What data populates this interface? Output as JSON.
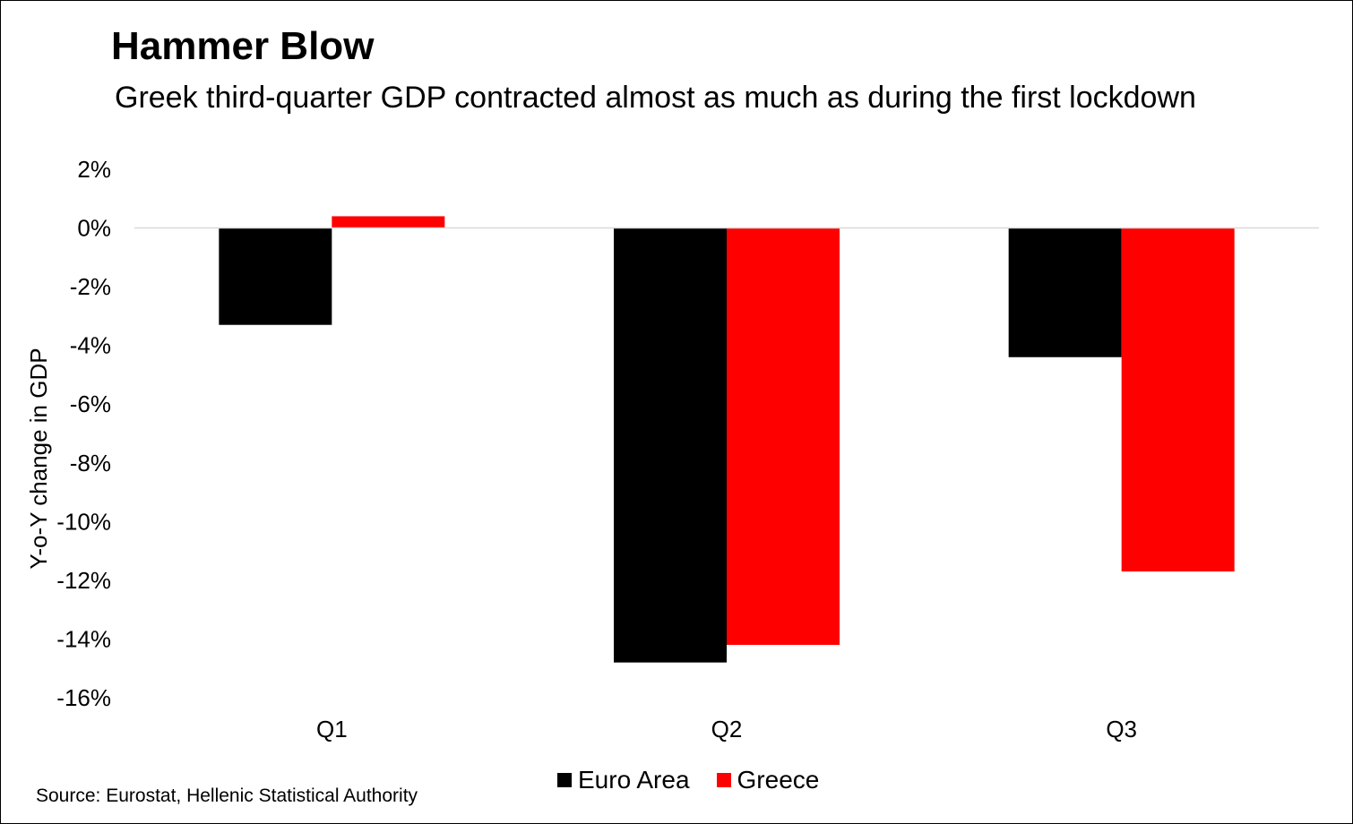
{
  "chart_data": {
    "type": "bar",
    "title": "Hammer Blow",
    "subtitle": "Greek third-quarter GDP contracted almost as much as during the first lockdown",
    "ylabel": "Y-o-Y change in GDP",
    "xlabel": "",
    "categories": [
      "Q1",
      "Q2",
      "Q3"
    ],
    "series": [
      {
        "name": "Euro Area",
        "color": "#000000",
        "values": [
          -3.3,
          -14.8,
          -4.4
        ]
      },
      {
        "name": "Greece",
        "color": "#ff0000",
        "values": [
          0.4,
          -14.2,
          -11.7
        ]
      }
    ],
    "ylim": [
      -16,
      2
    ],
    "yticks": [
      2,
      0,
      -2,
      -4,
      -6,
      -8,
      -10,
      -12,
      -14,
      -16
    ],
    "ytick_labels": [
      "2%",
      "0%",
      "-2%",
      "-4%",
      "-6%",
      "-8%",
      "-10%",
      "-12%",
      "-14%",
      "-16%"
    ],
    "grid": false,
    "zero_line": true,
    "legend_position": "bottom",
    "source": "Source: Eurostat, Hellenic Statistical Authority"
  }
}
